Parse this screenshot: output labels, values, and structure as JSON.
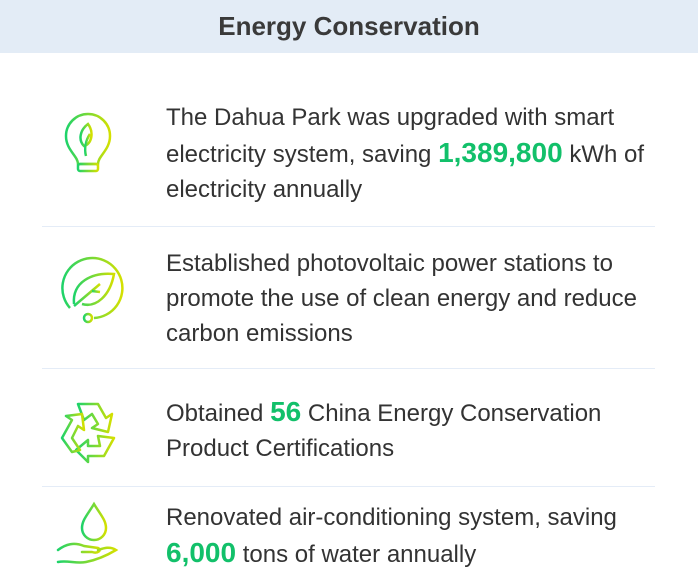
{
  "header": {
    "title": "Energy Conservation"
  },
  "items": [
    {
      "icon": "lightbulb-leaf-icon",
      "pre": "The Dahua Park was upgraded with smart electricity system, saving ",
      "value": "1,389,800",
      "post": " kWh of electricity annually"
    },
    {
      "icon": "leaf-plug-icon",
      "pre": "Established photovoltaic power stations to promote the use of clean energy and reduce carbon emissions",
      "value": "",
      "post": ""
    },
    {
      "icon": "recycle-icon",
      "pre": "Obtained ",
      "value": "56",
      "post": " China Energy Conservation Product Certifications"
    },
    {
      "icon": "hand-water-drop-icon",
      "pre": "Renovated air-conditioning system, saving ",
      "value": "6,000",
      "post": " tons of water annually"
    }
  ],
  "colors": {
    "accent": "#12c06a",
    "header_bg": "#e3ecf6"
  }
}
